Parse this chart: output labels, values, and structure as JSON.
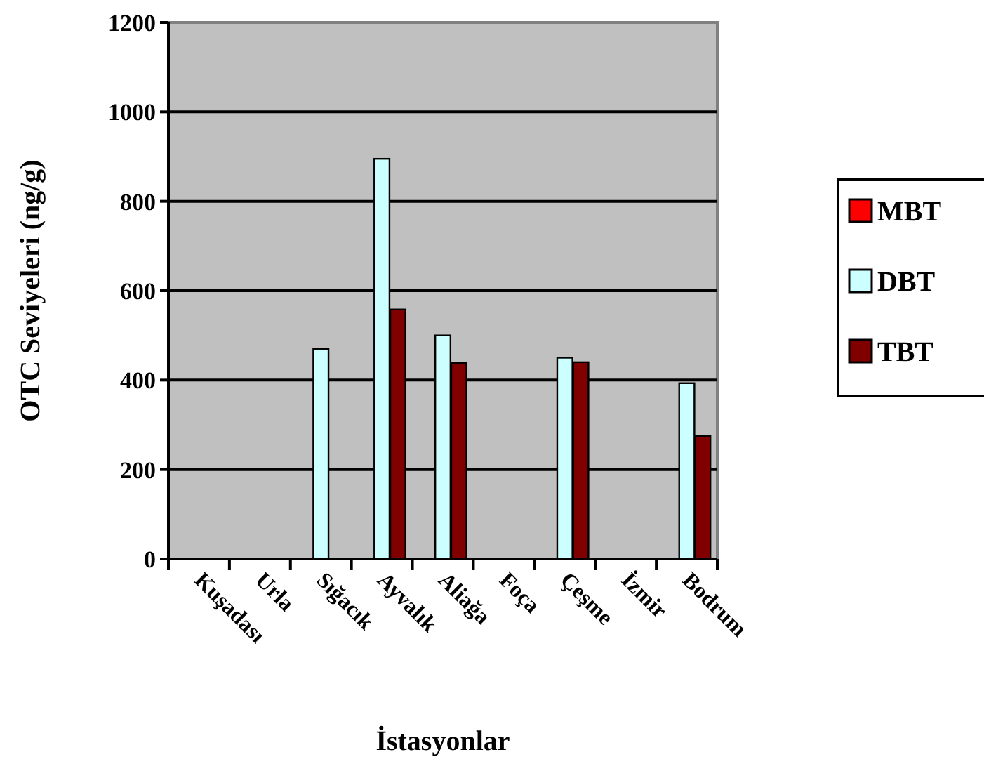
{
  "chart_data": {
    "type": "bar",
    "xlabel": "İstasyonlar",
    "ylabel": "OTC Seviyeleri (ng/g)",
    "categories": [
      "Kuşadası",
      "Urla",
      "Sığacık",
      "Ayvalık",
      "Aliağa",
      "Foça",
      "Çeşme",
      "İzmir",
      "Bodrum"
    ],
    "series": [
      {
        "name": "MBT",
        "color": "#ff0000",
        "values": [
          null,
          null,
          null,
          null,
          null,
          null,
          null,
          null,
          null
        ]
      },
      {
        "name": "DBT",
        "color": "#ccffff",
        "values": [
          null,
          null,
          470,
          895,
          500,
          null,
          450,
          null,
          393
        ]
      },
      {
        "name": "TBT",
        "color": "#800000",
        "values": [
          null,
          null,
          null,
          558,
          438,
          null,
          440,
          null,
          275
        ]
      }
    ],
    "ylim": [
      0,
      1200
    ],
    "yticks": [
      0,
      200,
      400,
      600,
      800,
      1000,
      1200
    ],
    "grid": "y",
    "legend": "right"
  }
}
